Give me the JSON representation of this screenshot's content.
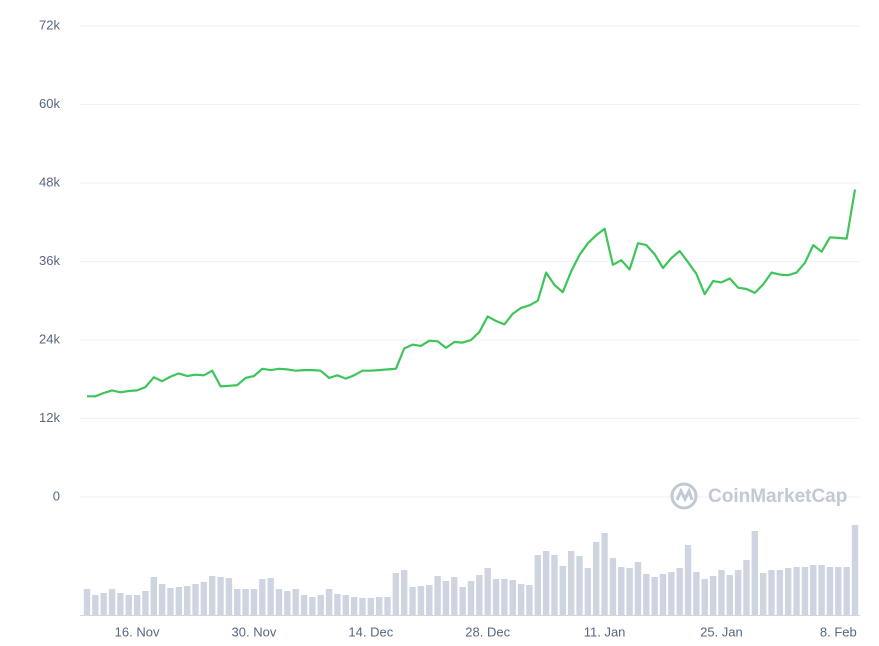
{
  "chart_data": {
    "type": "line",
    "color": "#3ec55a",
    "volume_color": "#cfd4e1",
    "grid": true,
    "watermark": "CoinMarketCap",
    "ylim": [
      0,
      72000
    ],
    "yticks": [
      0,
      {
        "value": 12000,
        "label": "12k"
      },
      {
        "value": 24000,
        "label": "24k"
      },
      {
        "value": 36000,
        "label": "36k"
      },
      {
        "value": 48000,
        "label": "48k"
      },
      {
        "value": 60000,
        "label": "60k"
      },
      {
        "value": 72000,
        "label": "72k"
      }
    ],
    "categories": [
      null,
      null,
      null,
      null,
      null,
      null,
      "16. Nov",
      null,
      null,
      null,
      null,
      null,
      null,
      null,
      null,
      null,
      null,
      null,
      null,
      null,
      "30. Nov",
      null,
      null,
      null,
      null,
      null,
      null,
      null,
      null,
      null,
      null,
      null,
      null,
      null,
      "14. Dec",
      null,
      null,
      null,
      null,
      null,
      null,
      null,
      null,
      null,
      null,
      null,
      null,
      null,
      "28. Dec",
      null,
      null,
      null,
      null,
      null,
      null,
      null,
      null,
      null,
      null,
      null,
      null,
      null,
      "11. Jan",
      null,
      null,
      null,
      null,
      null,
      null,
      null,
      null,
      null,
      null,
      null,
      null,
      null,
      "25. Jan",
      null,
      null,
      null,
      null,
      null,
      null,
      null,
      null,
      null,
      null,
      null,
      null,
      null,
      "8. Feb",
      null,
      null
    ],
    "values": [
      15400,
      15400,
      15900,
      16300,
      16000,
      16200,
      16300,
      16800,
      18300,
      17700,
      18400,
      18900,
      18500,
      18700,
      18600,
      19300,
      16900,
      17000,
      17100,
      18200,
      18500,
      19600,
      19400,
      19600,
      19500,
      19300,
      19400,
      19400,
      19300,
      18200,
      18600,
      18100,
      18600,
      19300,
      19300,
      19400,
      19500,
      19600,
      22700,
      23300,
      23100,
      23900,
      23800,
      22800,
      23700,
      23600,
      24000,
      25200,
      27600,
      26900,
      26400,
      28000,
      28900,
      29300,
      30000,
      34300,
      32400,
      31300,
      34500,
      37000,
      38800,
      40000,
      41000,
      35500,
      36200,
      34800,
      38800,
      38500,
      37100,
      35000,
      36500,
      37600,
      35900,
      34100,
      31000,
      33000,
      32800,
      33400,
      32000,
      31800,
      31200,
      32500,
      34300,
      34000,
      33900,
      34300,
      35800,
      38500,
      37500,
      39700,
      39600,
      39500,
      47000
    ],
    "volume": [
      26,
      20,
      22,
      26,
      22,
      20,
      20,
      24,
      38,
      31,
      27,
      28,
      29,
      31,
      33,
      39,
      38,
      37,
      26,
      26,
      26,
      36,
      37,
      26,
      24,
      26,
      20,
      18,
      20,
      26,
      21,
      20,
      18,
      17,
      17,
      18,
      18,
      42,
      45,
      28,
      29,
      30,
      39,
      34,
      38,
      28,
      34,
      40,
      47,
      36,
      36,
      35,
      31,
      30,
      60,
      64,
      60,
      49,
      64,
      59,
      47,
      73,
      82,
      57,
      48,
      47,
      53,
      41,
      38,
      41,
      43,
      47,
      70,
      43,
      36,
      39,
      45,
      40,
      45,
      55,
      84,
      42,
      45,
      45,
      47,
      48,
      48,
      50,
      50,
      48,
      48,
      48,
      90
    ]
  }
}
